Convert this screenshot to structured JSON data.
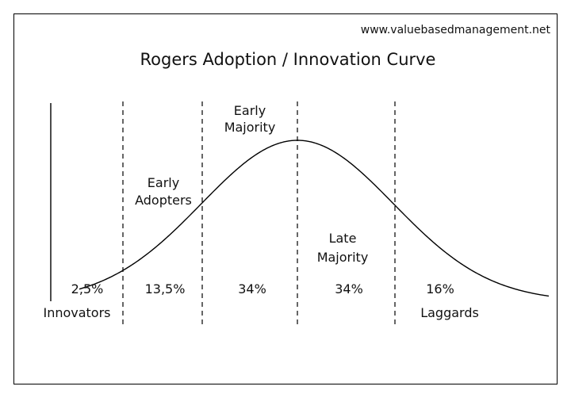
{
  "source": "www.valuebasedmanagement.net",
  "title": "Rogers Adoption / Innovation Curve",
  "segments": [
    {
      "label_lines": [],
      "percent": "2,5%"
    },
    {
      "label_lines": [
        "Early",
        "Adopters"
      ],
      "percent": "13,5%"
    },
    {
      "label_lines": [
        "Early",
        "Majority"
      ],
      "percent": "34%"
    },
    {
      "label_lines": [
        "Late",
        "Majority"
      ],
      "percent": "34%"
    },
    {
      "label_lines": [],
      "percent": "16%"
    }
  ],
  "bottom_labels": {
    "left": "Innovators",
    "right": "Laggards"
  },
  "colors": {
    "line": "#000000",
    "background": "#ffffff",
    "text": "#111111"
  }
}
